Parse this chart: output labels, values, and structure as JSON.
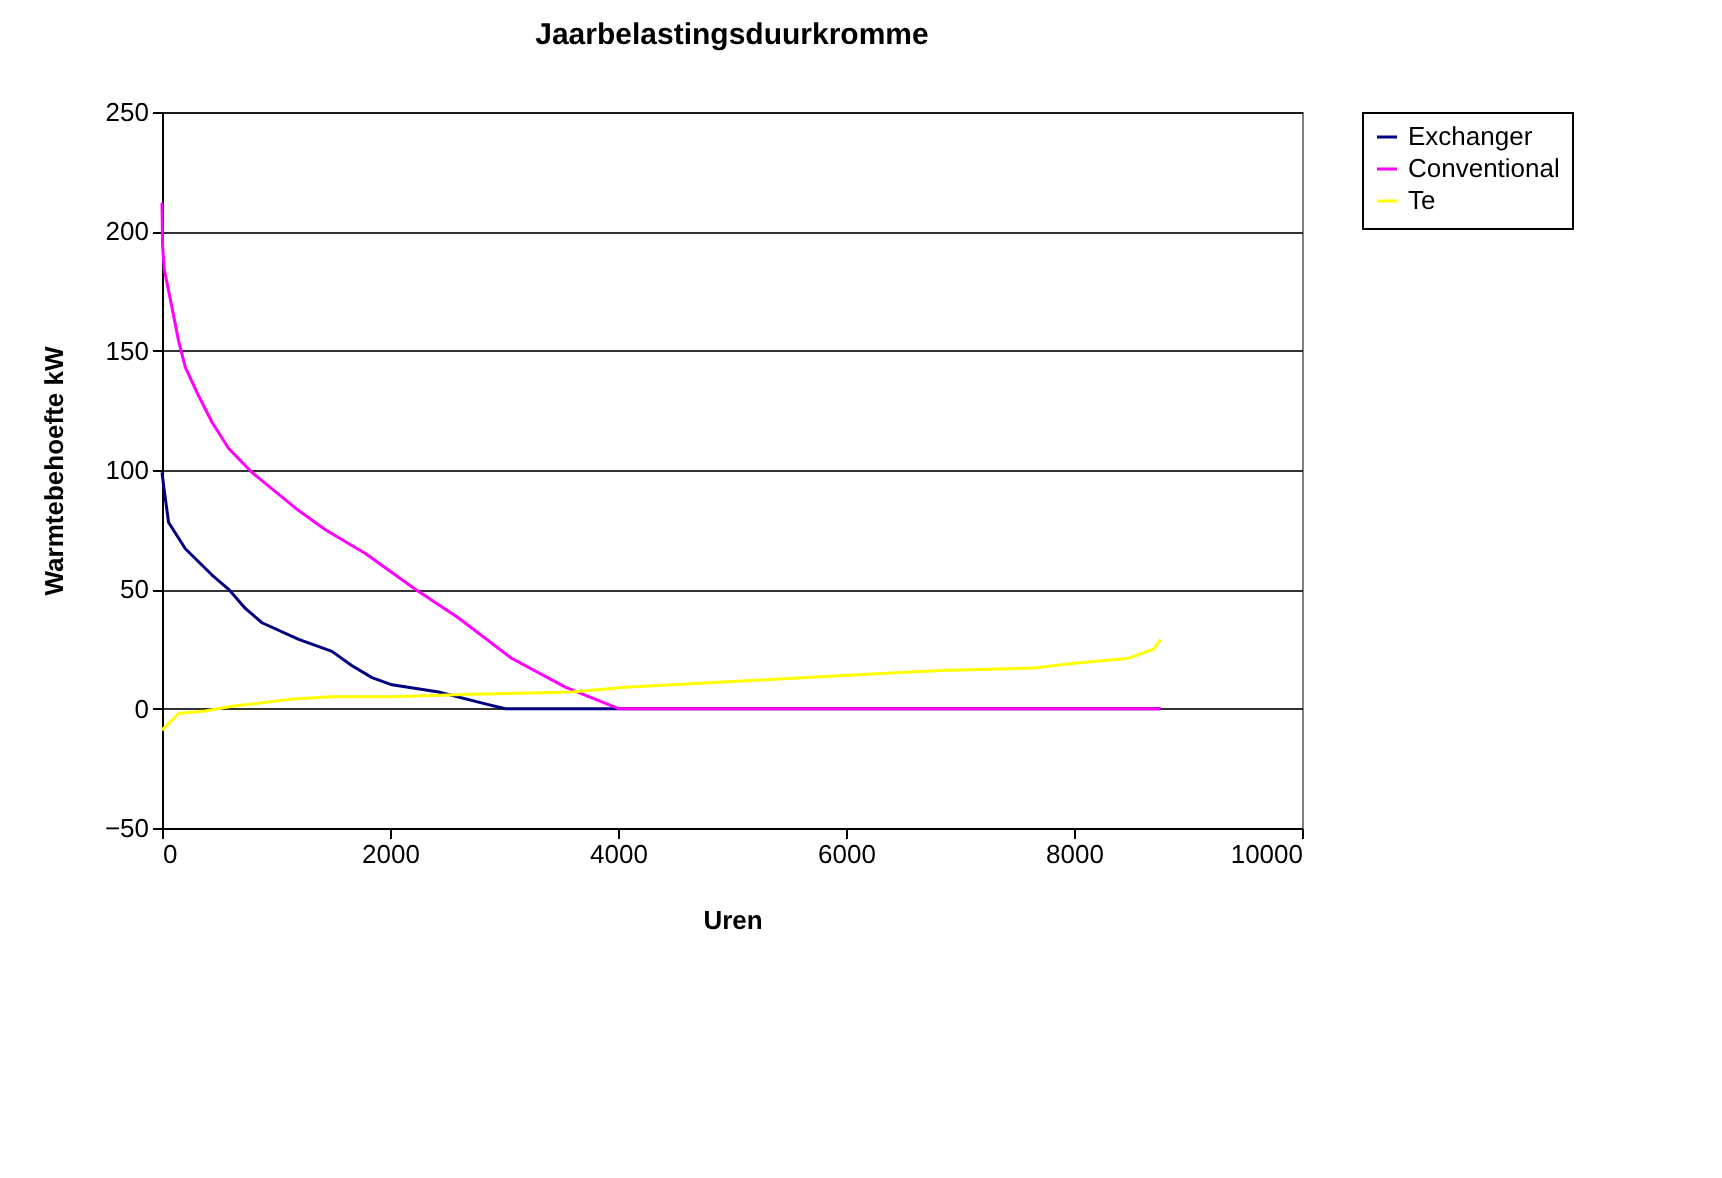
{
  "chart_data": {
    "type": "line",
    "title": "Jaarbelastingsduurkromme",
    "xlabel": "Uren",
    "ylabel": "Warmtebehoefte kW",
    "xlim": [
      0,
      10000
    ],
    "xticks": [
      0,
      2000,
      4000,
      6000,
      8000,
      10000
    ],
    "ylim": [
      -50,
      250
    ],
    "yticks": [
      -50,
      0,
      50,
      100,
      150,
      200,
      250
    ],
    "grid": "y",
    "legend": "right",
    "marker": "none",
    "line_style": "solid",
    "series": [
      {
        "name": "Exchanger",
        "color": "#000080",
        "x": [
          0,
          18,
          58,
          205,
          439,
          585,
          731,
          877,
          1199,
          1491,
          1667,
          1842,
          2018,
          2427,
          2836,
          3012,
          8760
        ],
        "values": [
          99,
          92,
          78,
          67,
          56,
          50,
          42,
          36,
          29,
          24,
          18,
          13,
          10,
          7,
          2,
          0,
          0
        ]
      },
      {
        "name": "Conventional",
        "color": "#ff00ff",
        "x": [
          0,
          5,
          20,
          88,
          146,
          205,
          322,
          439,
          585,
          789,
          1199,
          1433,
          1784,
          2222,
          2602,
          3070,
          3538,
          4006,
          8760
        ],
        "values": [
          212,
          194,
          184,
          168,
          154,
          143,
          131,
          120,
          109,
          99,
          83,
          75,
          65,
          50,
          38,
          21,
          9,
          0,
          0
        ]
      },
      {
        "name": "Te",
        "color": "#ffff00",
        "x": [
          0,
          146,
          380,
          614,
          1140,
          1491,
          2018,
          2719,
          3596,
          4064,
          5251,
          6012,
          6830,
          7649,
          8000,
          8468,
          8702,
          8760
        ],
        "values": [
          -9,
          -2,
          -1,
          1,
          4,
          5,
          5,
          6,
          7,
          9,
          12,
          14,
          16,
          17,
          19,
          21,
          25,
          29
        ]
      }
    ]
  }
}
